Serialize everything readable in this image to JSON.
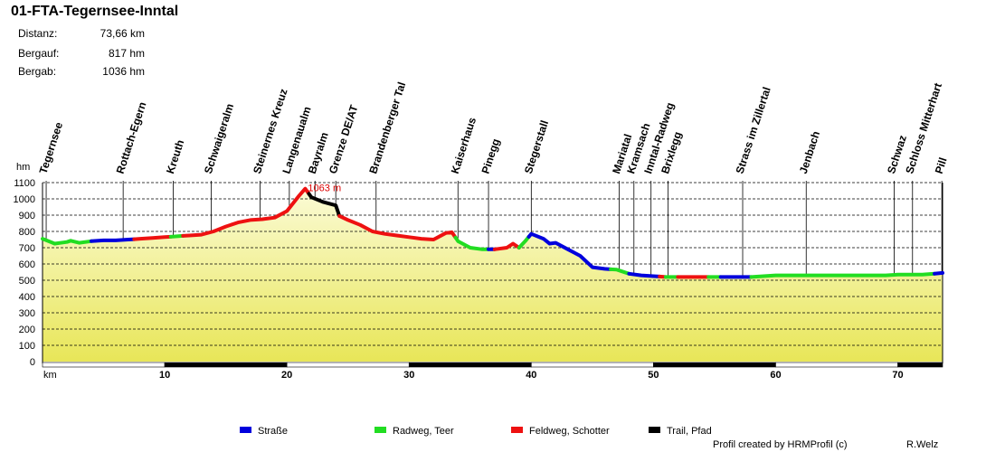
{
  "title": "01-FTA-Tegernsee-Inntal",
  "stats": [
    {
      "label": "Distanz:",
      "value": "73,66 km"
    },
    {
      "label": "Bergauf:",
      "value": "817 hm"
    },
    {
      "label": "Bergab:",
      "value": "1036 hm"
    }
  ],
  "footer": "Profil created by HRMProfil (c)",
  "author": "R.Welz",
  "colors": {
    "strasse": "#0000dd",
    "radweg": "#22dd22",
    "feldweg": "#ee1111",
    "trail": "#000000",
    "fill_top": "#fbfbd6",
    "fill_bottom": "#e8e658",
    "max_label": "#dd0000"
  },
  "chart_data": {
    "type": "area",
    "title": "01-FTA-Tegernsee-Inntal",
    "xlabel": "km",
    "ylabel": "hm",
    "xlim": [
      0,
      73.66
    ],
    "ylim": [
      0,
      1100
    ],
    "x_ticks": [
      10,
      20,
      30,
      40,
      50,
      60,
      70
    ],
    "y_ticks": [
      0,
      100,
      200,
      300,
      400,
      500,
      600,
      700,
      800,
      900,
      1000,
      1100
    ],
    "max_label": "1063 m",
    "max_point": {
      "x": 21.5,
      "y": 1063
    },
    "profile": [
      [
        0.0,
        755
      ],
      [
        1.0,
        725
      ],
      [
        2.0,
        735
      ],
      [
        2.3,
        743
      ],
      [
        3.0,
        730
      ],
      [
        4.0,
        740
      ],
      [
        5.0,
        745
      ],
      [
        6.0,
        745
      ],
      [
        7.0,
        750
      ],
      [
        8.0,
        755
      ],
      [
        9.0,
        760
      ],
      [
        10.0,
        765
      ],
      [
        11.0,
        770
      ],
      [
        12.0,
        775
      ],
      [
        13.0,
        780
      ],
      [
        14.0,
        800
      ],
      [
        15.0,
        830
      ],
      [
        16.0,
        855
      ],
      [
        17.0,
        870
      ],
      [
        18.0,
        875
      ],
      [
        19.0,
        885
      ],
      [
        20.0,
        925
      ],
      [
        21.0,
        1020
      ],
      [
        21.5,
        1063
      ],
      [
        22.0,
        1010
      ],
      [
        23.0,
        980
      ],
      [
        24.0,
        960
      ],
      [
        24.3,
        895
      ],
      [
        25.0,
        870
      ],
      [
        26.0,
        840
      ],
      [
        27.0,
        800
      ],
      [
        28.0,
        785
      ],
      [
        29.0,
        775
      ],
      [
        30.0,
        765
      ],
      [
        31.0,
        755
      ],
      [
        32.0,
        750
      ],
      [
        33.0,
        790
      ],
      [
        33.5,
        795
      ],
      [
        34.0,
        740
      ],
      [
        35.0,
        700
      ],
      [
        36.0,
        690
      ],
      [
        37.0,
        690
      ],
      [
        38.0,
        700
      ],
      [
        38.5,
        725
      ],
      [
        39.0,
        700
      ],
      [
        39.5,
        740
      ],
      [
        40.0,
        785
      ],
      [
        41.0,
        755
      ],
      [
        41.5,
        725
      ],
      [
        42.0,
        730
      ],
      [
        43.0,
        690
      ],
      [
        44.0,
        650
      ],
      [
        45.0,
        580
      ],
      [
        46.0,
        570
      ],
      [
        47.0,
        565
      ],
      [
        48.0,
        540
      ],
      [
        49.0,
        530
      ],
      [
        50.0,
        525
      ],
      [
        51.0,
        520
      ],
      [
        52.0,
        520
      ],
      [
        53.0,
        520
      ],
      [
        54.0,
        520
      ],
      [
        55.0,
        520
      ],
      [
        56.0,
        520
      ],
      [
        57.0,
        520
      ],
      [
        58.0,
        520
      ],
      [
        59.0,
        525
      ],
      [
        60.0,
        530
      ],
      [
        61.0,
        530
      ],
      [
        62.0,
        530
      ],
      [
        63.0,
        530
      ],
      [
        64.0,
        530
      ],
      [
        65.0,
        530
      ],
      [
        66.0,
        530
      ],
      [
        67.0,
        530
      ],
      [
        68.0,
        530
      ],
      [
        69.0,
        530
      ],
      [
        70.0,
        535
      ],
      [
        71.0,
        535
      ],
      [
        72.0,
        535
      ],
      [
        73.0,
        540
      ],
      [
        73.66,
        545
      ]
    ],
    "segments": [
      {
        "from": 0.0,
        "to": 1.0,
        "surface": "radweg"
      },
      {
        "from": 1.0,
        "to": 4.0,
        "surface": "radweg"
      },
      {
        "from": 4.0,
        "to": 7.5,
        "surface": "strasse"
      },
      {
        "from": 7.5,
        "to": 10.5,
        "surface": "feldweg"
      },
      {
        "from": 10.5,
        "to": 11.5,
        "surface": "radweg"
      },
      {
        "from": 11.5,
        "to": 21.8,
        "surface": "feldweg"
      },
      {
        "from": 21.8,
        "to": 24.3,
        "surface": "trail"
      },
      {
        "from": 24.3,
        "to": 33.8,
        "surface": "feldweg"
      },
      {
        "from": 33.8,
        "to": 36.5,
        "surface": "radweg"
      },
      {
        "from": 36.5,
        "to": 37.0,
        "surface": "strasse"
      },
      {
        "from": 37.0,
        "to": 39.0,
        "surface": "feldweg"
      },
      {
        "from": 39.0,
        "to": 39.8,
        "surface": "radweg"
      },
      {
        "from": 39.8,
        "to": 46.5,
        "surface": "strasse"
      },
      {
        "from": 46.5,
        "to": 48.0,
        "surface": "radweg"
      },
      {
        "from": 48.0,
        "to": 50.5,
        "surface": "strasse"
      },
      {
        "from": 50.5,
        "to": 51.0,
        "surface": "feldweg"
      },
      {
        "from": 51.0,
        "to": 52.0,
        "surface": "radweg"
      },
      {
        "from": 52.0,
        "to": 54.5,
        "surface": "feldweg"
      },
      {
        "from": 54.5,
        "to": 55.5,
        "surface": "radweg"
      },
      {
        "from": 55.5,
        "to": 58.0,
        "surface": "strasse"
      },
      {
        "from": 58.0,
        "to": 73.0,
        "surface": "radweg"
      },
      {
        "from": 73.0,
        "to": 73.66,
        "surface": "strasse"
      }
    ],
    "waypoints": [
      {
        "name": "Tegernsee",
        "km": 0.3
      },
      {
        "name": "Rottach-Egern",
        "km": 6.6
      },
      {
        "name": "Kreuth",
        "km": 10.7
      },
      {
        "name": "Schwaigeralm",
        "km": 13.8
      },
      {
        "name": "Steinernes Kreuz",
        "km": 17.8
      },
      {
        "name": "Langenaualm",
        "km": 20.2
      },
      {
        "name": "Bayralm",
        "km": 22.3
      },
      {
        "name": "Grenze DE/AT",
        "km": 24.0
      },
      {
        "name": "Brandenberger Tal",
        "km": 27.3
      },
      {
        "name": "Kaiserhaus",
        "km": 34.0
      },
      {
        "name": "Pinegg",
        "km": 36.5
      },
      {
        "name": "Stegerstall",
        "km": 40.0
      },
      {
        "name": "Mariatal",
        "km": 47.2
      },
      {
        "name": "Kramsach",
        "km": 48.4
      },
      {
        "name": "Inntal-Radweg",
        "km": 49.8
      },
      {
        "name": "Brixlegg",
        "km": 51.2
      },
      {
        "name": "Strass im Zillertal",
        "km": 57.3
      },
      {
        "name": "Jenbach",
        "km": 62.5
      },
      {
        "name": "Schwaz",
        "km": 69.7
      },
      {
        "name": "Schloss Mitterhart",
        "km": 71.2
      },
      {
        "name": "Pill",
        "km": 73.6
      }
    ],
    "legend": [
      {
        "key": "strasse",
        "label": "Straße"
      },
      {
        "key": "radweg",
        "label": "Radweg, Teer"
      },
      {
        "key": "feldweg",
        "label": "Feldweg, Schotter"
      },
      {
        "key": "trail",
        "label": "Trail, Pfad"
      }
    ]
  }
}
